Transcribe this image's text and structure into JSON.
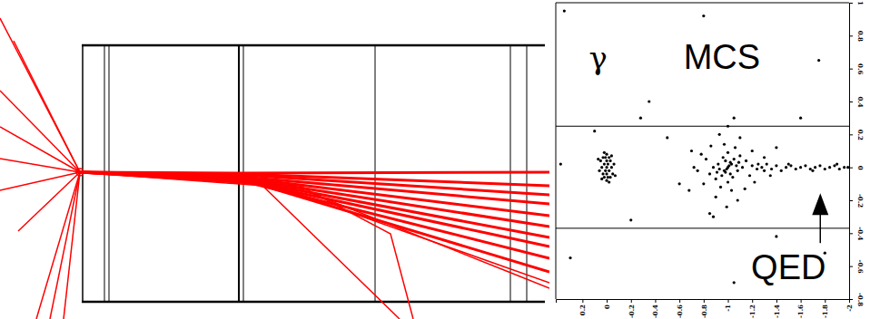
{
  "chart_data": {
    "type": "scatter",
    "color": "#000000",
    "marker": "circle",
    "x": [
      0,
      0.02,
      -0.02,
      0.03,
      -0.03,
      0.01,
      -0.01,
      0.04,
      -0.04,
      0.02,
      -0.02,
      0.0,
      0.0,
      0.05,
      -0.05,
      0.03,
      -0.03,
      0.01,
      -0.01,
      0.06,
      -0.06,
      0.02,
      -0.02,
      0.04,
      -0.04,
      0.0,
      0.0,
      0.07,
      -0.07,
      -1.0,
      -1.02,
      -0.98,
      -1.05,
      -0.95,
      -1.08,
      -0.92,
      -1.1,
      -0.9,
      -1.12,
      -0.88,
      -1.0,
      -1.0,
      -1.04,
      -0.96,
      -1.15,
      -0.85,
      -1.18,
      -0.82,
      -1.06,
      -0.94,
      -1.03,
      -0.97,
      -1.2,
      -0.8,
      -1.22,
      -0.78,
      -1.1,
      -0.9,
      -1.08,
      -0.93,
      -1.25,
      -0.75,
      -1.3,
      -0.72,
      -1.0,
      -0.99,
      -1.14,
      -0.86,
      -1.35,
      -0.7,
      -1.05,
      -0.88,
      -1.4,
      -0.68,
      -1.01,
      -0.99,
      -1.03,
      -0.97,
      -1.02,
      -0.98,
      -1.07,
      -0.93,
      -1.09,
      -0.91,
      -1.2,
      -1.24,
      -1.28,
      -1.32,
      -1.36,
      -1.4,
      -1.44,
      -1.48,
      -1.52,
      -1.56,
      -1.6,
      -1.64,
      -1.68,
      -1.72,
      -1.76,
      -1.8,
      -1.84,
      -1.88,
      -1.92,
      -1.96,
      -1.99,
      -1.3,
      -1.5,
      -1.7,
      -1.9,
      0.35,
      -0.8,
      -1.75,
      -0.35,
      -0.28,
      0.1,
      -0.5,
      -0.6,
      0.3,
      -1.8,
      -1.05,
      -1.4,
      -0.85,
      0.38,
      -0.2,
      -1.6
    ],
    "values": [
      0,
      0.02,
      -0.02,
      -0.04,
      0.04,
      0.06,
      -0.06,
      0.0,
      0.0,
      -0.06,
      0.06,
      0.08,
      -0.08,
      0.04,
      -0.04,
      0.06,
      -0.06,
      -0.02,
      0.02,
      -0.02,
      0.02,
      0.09,
      -0.09,
      -0.07,
      0.07,
      0.04,
      -0.04,
      0.05,
      -0.05,
      0,
      0.03,
      -0.03,
      0.05,
      -0.05,
      -0.02,
      0.02,
      0.07,
      -0.07,
      0.0,
      0.0,
      0.09,
      -0.09,
      -0.06,
      0.06,
      0.04,
      -0.04,
      -0.05,
      0.05,
      0.12,
      -0.12,
      -0.14,
      0.14,
      0.1,
      -0.1,
      -0.09,
      0.08,
      0.18,
      -0.18,
      -0.2,
      0.2,
      0.02,
      -0.02,
      0.06,
      0.0,
      0.25,
      -0.24,
      -0.13,
      0.13,
      -0.05,
      0.1,
      0.3,
      -0.3,
      0.12,
      -0.14,
      0.01,
      -0.01,
      0.02,
      -0.02,
      -0.04,
      0.04,
      0.01,
      -0.01,
      0.03,
      -0.03,
      0.01,
      -0.01,
      0.0,
      0.02,
      -0.01,
      0.01,
      -0.02,
      0.0,
      0.01,
      -0.01,
      0.0,
      0.01,
      -0.01,
      0.0,
      0.01,
      -0.01,
      0.0,
      0.01,
      -0.01,
      0.0,
      0.0,
      -0.02,
      0.02,
      -0.02,
      0.02,
      0.95,
      0.92,
      0.65,
      0.4,
      0.3,
      0.22,
      0.18,
      -0.1,
      -0.55,
      -0.52,
      -0.7,
      -0.42,
      -0.28,
      0.02,
      -0.32,
      0.3
    ],
    "xlim": [
      0.42,
      -2.0
    ],
    "xticks": [
      0.2,
      0,
      -0.2,
      -0.4,
      -0.6,
      -0.8,
      -1,
      -1.2,
      -1.4,
      -1.6,
      -1.8,
      -2
    ],
    "ylim": [
      -0.8,
      1
    ],
    "yticks": [
      1,
      0.8,
      0.6,
      0.4,
      0.2,
      0,
      -0.2,
      -0.4,
      -0.6,
      -0.8
    ],
    "hlines": [
      0.25,
      -0.37
    ],
    "annotations": [
      {
        "text": "γ",
        "x": 0.07,
        "y": 0.6
      },
      {
        "text": "MCS",
        "x": -0.95,
        "y": 0.6
      },
      {
        "text": "QED",
        "x": -1.5,
        "y": -0.68
      }
    ]
  }
}
